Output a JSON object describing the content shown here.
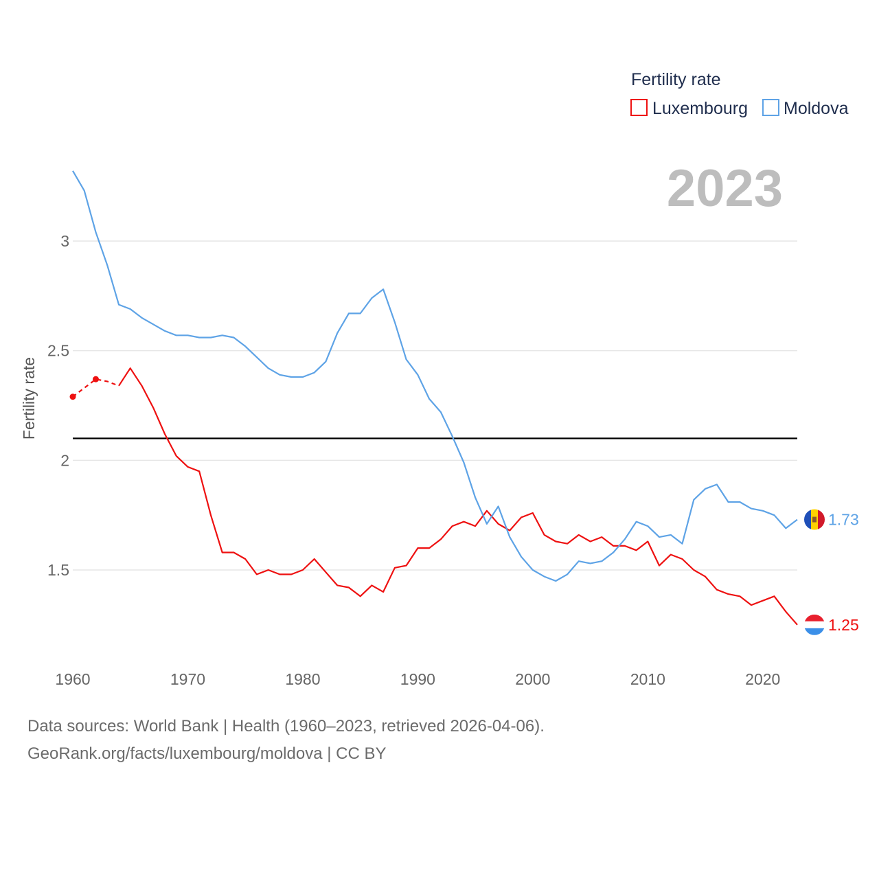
{
  "colors": {
    "luxembourg": "#ee1111",
    "moldova": "#5ea3e6",
    "grid": "#e6e6e6",
    "reference": "#000000"
  },
  "chart_data": {
    "type": "line",
    "title": "Fertility rate",
    "year_label": "2023",
    "ylabel": "Fertility rate",
    "xlabel": "",
    "xlim": [
      1960,
      2023
    ],
    "ylim": [
      1.1,
      3.4
    ],
    "x_ticks": [
      1960,
      1970,
      1980,
      1990,
      2000,
      2010,
      2020
    ],
    "y_ticks": [
      1.5,
      2,
      2.5,
      3
    ],
    "y_tick_labels": [
      "1.5",
      "2",
      "2.5",
      "3"
    ],
    "reference_line": 2.1,
    "legend": [
      "Luxembourg",
      "Moldova"
    ],
    "series": [
      {
        "name": "Luxembourg",
        "end_label": "1.25",
        "values": [
          [
            1960,
            2.29
          ],
          [
            1962,
            2.37
          ],
          [
            1963,
            2.36
          ],
          [
            1964,
            2.34
          ],
          [
            1965,
            2.42
          ],
          [
            1966,
            2.34
          ],
          [
            1967,
            2.24
          ],
          [
            1968,
            2.12
          ],
          [
            1969,
            2.02
          ],
          [
            1970,
            1.97
          ],
          [
            1971,
            1.95
          ],
          [
            1972,
            1.75
          ],
          [
            1973,
            1.58
          ],
          [
            1974,
            1.58
          ],
          [
            1975,
            1.55
          ],
          [
            1976,
            1.48
          ],
          [
            1977,
            1.5
          ],
          [
            1978,
            1.48
          ],
          [
            1979,
            1.48
          ],
          [
            1980,
            1.5
          ],
          [
            1981,
            1.55
          ],
          [
            1982,
            1.49
          ],
          [
            1983,
            1.43
          ],
          [
            1984,
            1.42
          ],
          [
            1985,
            1.38
          ],
          [
            1986,
            1.43
          ],
          [
            1987,
            1.4
          ],
          [
            1988,
            1.51
          ],
          [
            1989,
            1.52
          ],
          [
            1990,
            1.6
          ],
          [
            1991,
            1.6
          ],
          [
            1992,
            1.64
          ],
          [
            1993,
            1.7
          ],
          [
            1994,
            1.72
          ],
          [
            1995,
            1.7
          ],
          [
            1996,
            1.77
          ],
          [
            1997,
            1.71
          ],
          [
            1998,
            1.68
          ],
          [
            1999,
            1.74
          ],
          [
            2000,
            1.76
          ],
          [
            2001,
            1.66
          ],
          [
            2002,
            1.63
          ],
          [
            2003,
            1.62
          ],
          [
            2004,
            1.66
          ],
          [
            2005,
            1.63
          ],
          [
            2006,
            1.65
          ],
          [
            2007,
            1.61
          ],
          [
            2008,
            1.61
          ],
          [
            2009,
            1.59
          ],
          [
            2010,
            1.63
          ],
          [
            2011,
            1.52
          ],
          [
            2012,
            1.57
          ],
          [
            2013,
            1.55
          ],
          [
            2014,
            1.5
          ],
          [
            2015,
            1.47
          ],
          [
            2016,
            1.41
          ],
          [
            2017,
            1.39
          ],
          [
            2018,
            1.38
          ],
          [
            2019,
            1.34
          ],
          [
            2020,
            1.36
          ],
          [
            2021,
            1.38
          ],
          [
            2022,
            1.31
          ],
          [
            2023,
            1.25
          ]
        ],
        "dashed_points": [
          [
            1960,
            2.29
          ],
          [
            1962,
            2.37
          ],
          [
            1963,
            2.36
          ],
          [
            1964,
            2.34
          ]
        ]
      },
      {
        "name": "Moldova",
        "end_label": "1.73",
        "values": [
          [
            1960,
            3.32
          ],
          [
            1961,
            3.23
          ],
          [
            1962,
            3.04
          ],
          [
            1963,
            2.89
          ],
          [
            1964,
            2.71
          ],
          [
            1965,
            2.69
          ],
          [
            1966,
            2.65
          ],
          [
            1967,
            2.62
          ],
          [
            1968,
            2.59
          ],
          [
            1969,
            2.57
          ],
          [
            1970,
            2.57
          ],
          [
            1971,
            2.56
          ],
          [
            1972,
            2.56
          ],
          [
            1973,
            2.57
          ],
          [
            1974,
            2.56
          ],
          [
            1975,
            2.52
          ],
          [
            1976,
            2.47
          ],
          [
            1977,
            2.42
          ],
          [
            1978,
            2.39
          ],
          [
            1979,
            2.38
          ],
          [
            1980,
            2.38
          ],
          [
            1981,
            2.4
          ],
          [
            1982,
            2.45
          ],
          [
            1983,
            2.58
          ],
          [
            1984,
            2.67
          ],
          [
            1985,
            2.67
          ],
          [
            1986,
            2.74
          ],
          [
            1987,
            2.78
          ],
          [
            1988,
            2.63
          ],
          [
            1989,
            2.46
          ],
          [
            1990,
            2.39
          ],
          [
            1991,
            2.28
          ],
          [
            1992,
            2.22
          ],
          [
            1993,
            2.11
          ],
          [
            1994,
            1.99
          ],
          [
            1995,
            1.83
          ],
          [
            1996,
            1.71
          ],
          [
            1997,
            1.79
          ],
          [
            1998,
            1.65
          ],
          [
            1999,
            1.56
          ],
          [
            2000,
            1.5
          ],
          [
            2001,
            1.47
          ],
          [
            2002,
            1.45
          ],
          [
            2003,
            1.48
          ],
          [
            2004,
            1.54
          ],
          [
            2005,
            1.53
          ],
          [
            2006,
            1.54
          ],
          [
            2007,
            1.58
          ],
          [
            2008,
            1.64
          ],
          [
            2009,
            1.72
          ],
          [
            2010,
            1.7
          ],
          [
            2011,
            1.65
          ],
          [
            2012,
            1.66
          ],
          [
            2013,
            1.62
          ],
          [
            2014,
            1.82
          ],
          [
            2015,
            1.87
          ],
          [
            2016,
            1.89
          ],
          [
            2017,
            1.81
          ],
          [
            2018,
            1.81
          ],
          [
            2019,
            1.78
          ],
          [
            2020,
            1.77
          ],
          [
            2021,
            1.75
          ],
          [
            2022,
            1.69
          ],
          [
            2023,
            1.73
          ]
        ]
      }
    ]
  },
  "footer": {
    "line1": "Data sources: World Bank | Health (1960–2023, retrieved 2026-04-06).",
    "line2": "GeoRank.org/facts/luxembourg/moldova | CC BY"
  }
}
